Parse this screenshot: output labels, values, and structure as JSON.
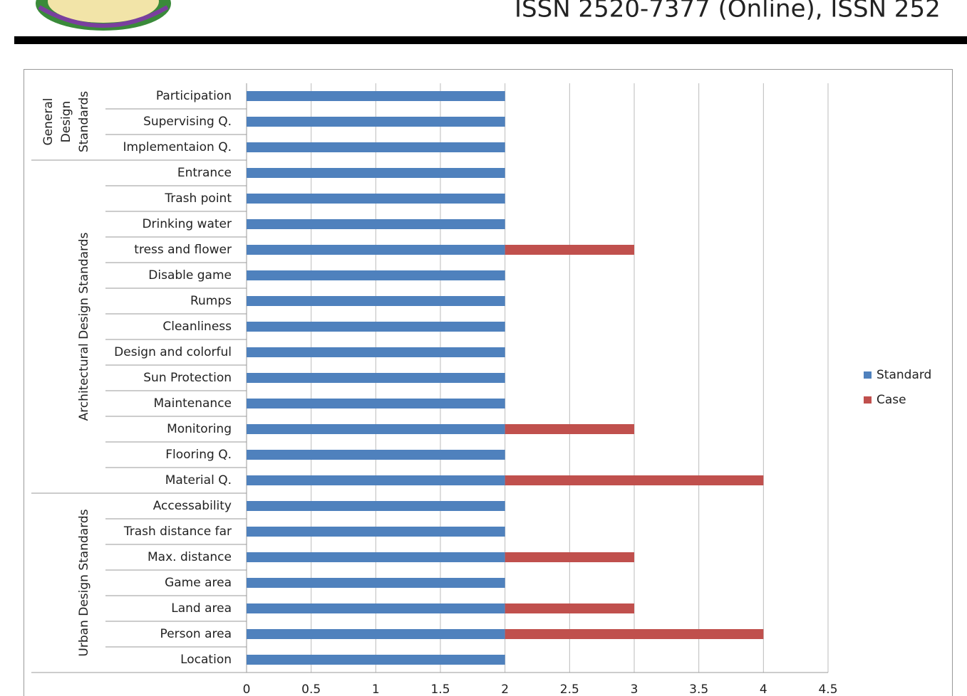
{
  "header": {
    "issn": "ISSN 2520-7377 (Online), ISSN 252"
  },
  "chart_data": {
    "type": "stacked-barh",
    "categories": [
      "Participation",
      "Supervising Q.",
      "Implementaion Q.",
      "Entrance",
      "Trash point",
      "Drinking water",
      "tress and flower",
      "Disable game",
      "Rumps",
      "Cleanliness",
      "Design and colorful",
      "Sun Protection",
      "Maintenance",
      "Monitoring",
      "Flooring Q.",
      "Material Q.",
      "Accessability",
      "Trash distance far",
      "Max. distance",
      "Game area",
      "Land area",
      "Person area",
      "Location"
    ],
    "groups": [
      {
        "label": [
          "General",
          "Design",
          "Standards"
        ],
        "count": 3
      },
      {
        "label": [
          "Architectural Design Standards"
        ],
        "count": 13
      },
      {
        "label": [
          "Urban Design Standards"
        ],
        "count": 7
      }
    ],
    "series": [
      {
        "name": "Standard",
        "color": "#4f81bd",
        "values": [
          2,
          2,
          2,
          2,
          2,
          2,
          2,
          2,
          2,
          2,
          2,
          2,
          2,
          2,
          2,
          2,
          2,
          2,
          2,
          2,
          2,
          2,
          2
        ]
      },
      {
        "name": "Case",
        "color": "#c0504d",
        "values": [
          0,
          0,
          0,
          0,
          0,
          0,
          1,
          0,
          0,
          0,
          0,
          0,
          0,
          1,
          0,
          2,
          0,
          0,
          1,
          0,
          1,
          2,
          0
        ]
      }
    ],
    "xlim": [
      0,
      4.5
    ],
    "xticks": [
      0,
      0.5,
      1,
      1.5,
      2,
      2.5,
      3,
      3.5,
      4,
      4.5
    ],
    "grid": true,
    "legend": "right"
  }
}
